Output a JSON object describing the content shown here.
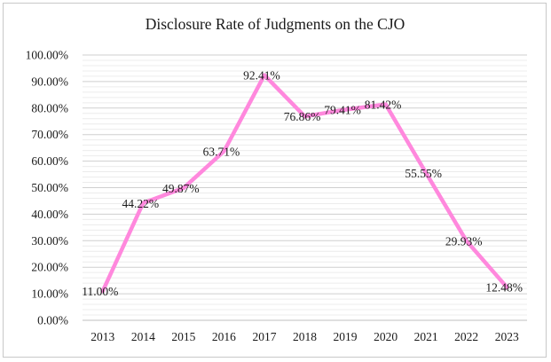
{
  "chart_data": {
    "type": "line",
    "title": "Disclosure Rate of Judgments on the CJO",
    "xlabel": "",
    "ylabel": "",
    "categories": [
      "2013",
      "2014",
      "2015",
      "2016",
      "2017",
      "2018",
      "2019",
      "2020",
      "2021",
      "2022",
      "2023"
    ],
    "series": [
      {
        "values": [
          11.0,
          44.22,
          49.87,
          63.71,
          92.41,
          76.86,
          79.41,
          81.42,
          55.55,
          29.93,
          12.48
        ],
        "labels": [
          "11.00%",
          "44.22%",
          "49.87%",
          "63.71%",
          "92.41%",
          "76.86%",
          "79.41%",
          "81.42%",
          "55.55%",
          "29.93%",
          "12.48%"
        ],
        "color": "#ff88dd"
      }
    ],
    "ylim": [
      0,
      100
    ],
    "ytick_labels": [
      "0.00%",
      "10.00%",
      "20.00%",
      "30.00%",
      "40.00%",
      "50.00%",
      "60.00%",
      "70.00%",
      "80.00%",
      "90.00%",
      "100.00%"
    ],
    "grid": true,
    "legend": "none"
  }
}
